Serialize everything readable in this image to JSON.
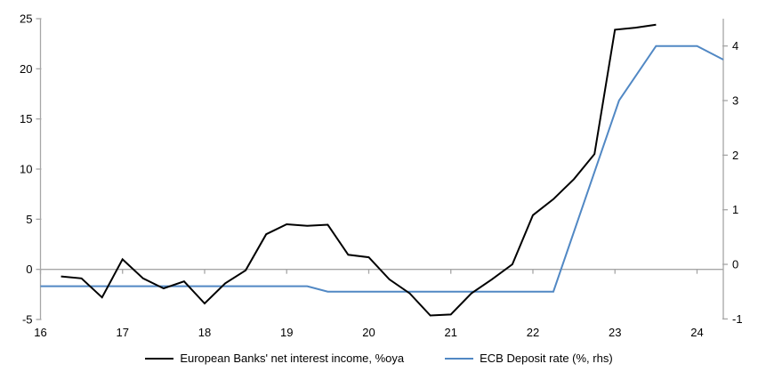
{
  "chart_data": {
    "type": "line",
    "title": "",
    "x_axis": {
      "min": 16,
      "max": 24.32,
      "ticks": [
        16,
        17,
        18,
        19,
        20,
        21,
        22,
        23,
        24
      ],
      "tick_labels": [
        "16",
        "17",
        "18",
        "19",
        "20",
        "21",
        "22",
        "23",
        "24"
      ]
    },
    "left_axis": {
      "min": -5,
      "max": 25,
      "ticks": [
        -5,
        0,
        5,
        10,
        15,
        20,
        25
      ],
      "tick_labels": [
        "-5",
        "0",
        "5",
        "10",
        "15",
        "20",
        "25"
      ]
    },
    "right_axis": {
      "min": -1.01,
      "max": 4.5,
      "ticks": [
        -1,
        0,
        1,
        2,
        3,
        4
      ],
      "tick_labels": [
        "-1",
        "0",
        "1",
        "2",
        "3",
        "4"
      ]
    },
    "grid": false,
    "zero_baseline": 0,
    "legend_position": "bottom",
    "series": [
      {
        "name": "European Banks' net interest income, %oya",
        "axis": "left",
        "color": "#000000",
        "width": 2,
        "x": [
          16.25,
          16.5,
          16.75,
          17,
          17.25,
          17.5,
          17.75,
          18,
          18.25,
          18.5,
          18.75,
          19,
          19.25,
          19.5,
          19.75,
          20,
          20.25,
          20.5,
          20.75,
          21,
          21.25,
          21.5,
          21.75,
          22,
          22.25,
          22.5,
          22.75,
          23,
          23.25,
          23.5
        ],
        "values": [
          -0.7,
          -0.9,
          -2.8,
          1.0,
          -0.9,
          -1.9,
          -1.2,
          -3.4,
          -1.4,
          -0.1,
          3.5,
          4.5,
          4.35,
          4.45,
          1.45,
          1.2,
          -1.0,
          -2.4,
          -4.6,
          -4.5,
          -2.4,
          -1.0,
          0.5,
          5.4,
          7.0,
          9.0,
          11.5,
          23.9,
          24.1,
          24.4
        ]
      },
      {
        "name": "ECB Deposit rate (%, rhs)",
        "axis": "right",
        "color": "#5188c4",
        "width": 2,
        "x": [
          16.0,
          19.25,
          19.5,
          22.25,
          23.05,
          23.5,
          24.0,
          24.32
        ],
        "values": [
          -0.4,
          -0.4,
          -0.5,
          -0.5,
          3.0,
          4.0,
          4.0,
          3.75
        ]
      }
    ]
  },
  "colors": {
    "axis": "#a6a6a6",
    "background": "#ffffff",
    "tick_text": "#000000"
  }
}
